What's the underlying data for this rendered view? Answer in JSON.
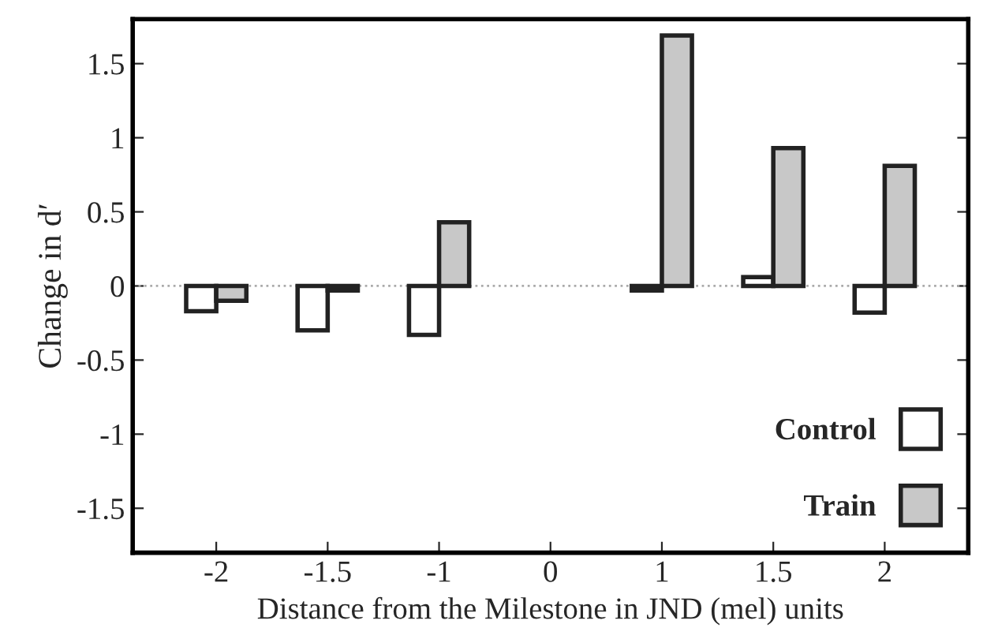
{
  "chart_data": {
    "type": "bar",
    "xlabel": "Distance from the Milestone in JND (mel) units",
    "ylabel": "Change in d′",
    "categories": [
      "-2",
      "-1.5",
      "-1",
      "0",
      "1",
      "1.5",
      "2"
    ],
    "series": [
      {
        "name": "Control",
        "color": "#ffffff",
        "values": [
          -0.17,
          -0.3,
          -0.33,
          null,
          -0.03,
          0.06,
          -0.18
        ]
      },
      {
        "name": "Train",
        "color": "#c8c8c8",
        "values": [
          -0.1,
          -0.03,
          0.43,
          null,
          1.69,
          0.93,
          0.81
        ]
      }
    ],
    "ylim": [
      -1.8,
      1.8
    ],
    "yticks": [
      -1.5,
      -1,
      -0.5,
      0,
      0.5,
      1,
      1.5
    ],
    "ref_lines": [
      {
        "axis": "y",
        "value": 0,
        "color": "#aaaaaa",
        "line_style": "dotted"
      }
    ],
    "legend": "bottom right",
    "grid": false
  }
}
